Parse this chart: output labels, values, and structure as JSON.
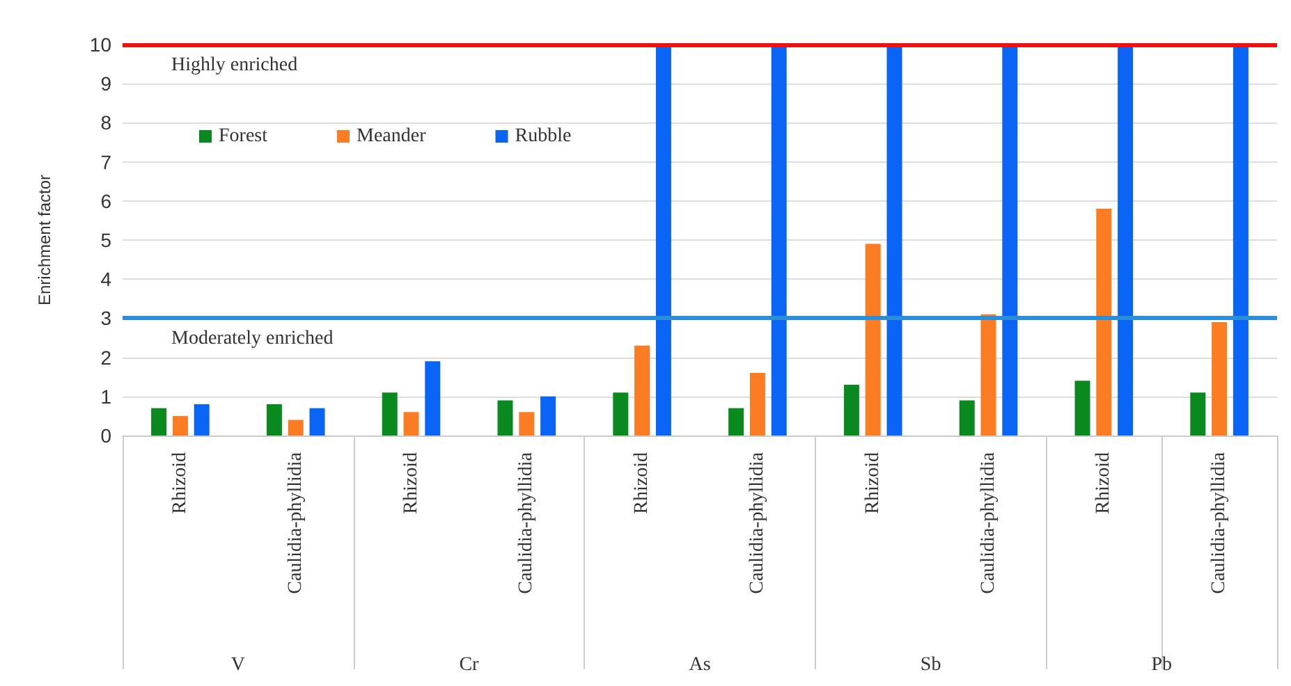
{
  "chart_data": {
    "type": "bar",
    "ylabel": "Enrichment factor",
    "categories": [
      "Rhizoid",
      "Caulidia-phyllidia",
      "Rhizoid",
      "Caulidia-phyllidia",
      "Rhizoid",
      "Caulidia-phyllidia",
      "Rhizoid",
      "Caulidia-phyllidia",
      "Rhizoid",
      "Caulidia-phyllidia"
    ],
    "series": [
      {
        "name": "Forest",
        "color": "#0a8a1e",
        "values": [
          0.7,
          0.8,
          1.1,
          0.9,
          1.1,
          0.7,
          1.3,
          0.9,
          1.4,
          1.1
        ]
      },
      {
        "name": "Meander",
        "color": "#fb7c23",
        "values": [
          0.5,
          0.4,
          0.6,
          0.6,
          2.3,
          1.6,
          4.9,
          3.1,
          5.8,
          2.9
        ]
      },
      {
        "name": "Rubble",
        "color": "#0a64f5",
        "values": [
          0.8,
          0.7,
          1.9,
          1.0,
          10,
          10,
          10,
          10,
          10,
          10
        ]
      }
    ],
    "ylim": [
      0,
      10
    ],
    "yticks": [
      0,
      1,
      2,
      3,
      4,
      5,
      6,
      7,
      8,
      9,
      10
    ],
    "grid": "y",
    "legend": "top left",
    "ref_lines": [
      {
        "axis": "y",
        "value": 10,
        "label": "Highly enriched",
        "color": "#ee1111"
      },
      {
        "axis": "y",
        "value": 3,
        "label": "Moderately enriched",
        "color": "#2a8fd6"
      }
    ],
    "annotations": [
      "V",
      "Cr",
      "As",
      "Sb",
      "Pb"
    ]
  }
}
